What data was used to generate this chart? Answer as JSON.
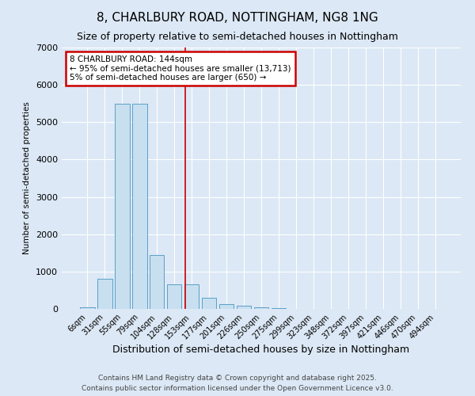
{
  "title1": "8, CHARLBURY ROAD, NOTTINGHAM, NG8 1NG",
  "title2": "Size of property relative to semi-detached houses in Nottingham",
  "xlabel": "Distribution of semi-detached houses by size in Nottingham",
  "ylabel": "Number of semi-detached properties",
  "categories": [
    "6sqm",
    "31sqm",
    "55sqm",
    "79sqm",
    "104sqm",
    "128sqm",
    "153sqm",
    "177sqm",
    "201sqm",
    "226sqm",
    "250sqm",
    "275sqm",
    "299sqm",
    "323sqm",
    "348sqm",
    "372sqm",
    "397sqm",
    "421sqm",
    "446sqm",
    "470sqm",
    "494sqm"
  ],
  "values": [
    50,
    800,
    5500,
    5500,
    1450,
    650,
    650,
    300,
    130,
    80,
    50,
    15,
    3,
    0,
    0,
    0,
    0,
    0,
    0,
    0,
    0
  ],
  "bar_color": "#c8dff0",
  "bar_edge_color": "#5a9fc8",
  "background_color": "#dce8f5",
  "marker_line_color": "#cc0000",
  "annotation_line1": "8 CHARLBURY ROAD: 144sqm",
  "annotation_line2": "← 95% of semi-detached houses are smaller (13,713)",
  "annotation_line3": "5% of semi-detached houses are larger (650) →",
  "annotation_box_color": "white",
  "annotation_box_edge_color": "#cc0000",
  "ylim": [
    0,
    7000
  ],
  "footer1": "Contains HM Land Registry data © Crown copyright and database right 2025.",
  "footer2": "Contains public sector information licensed under the Open Government Licence v3.0."
}
